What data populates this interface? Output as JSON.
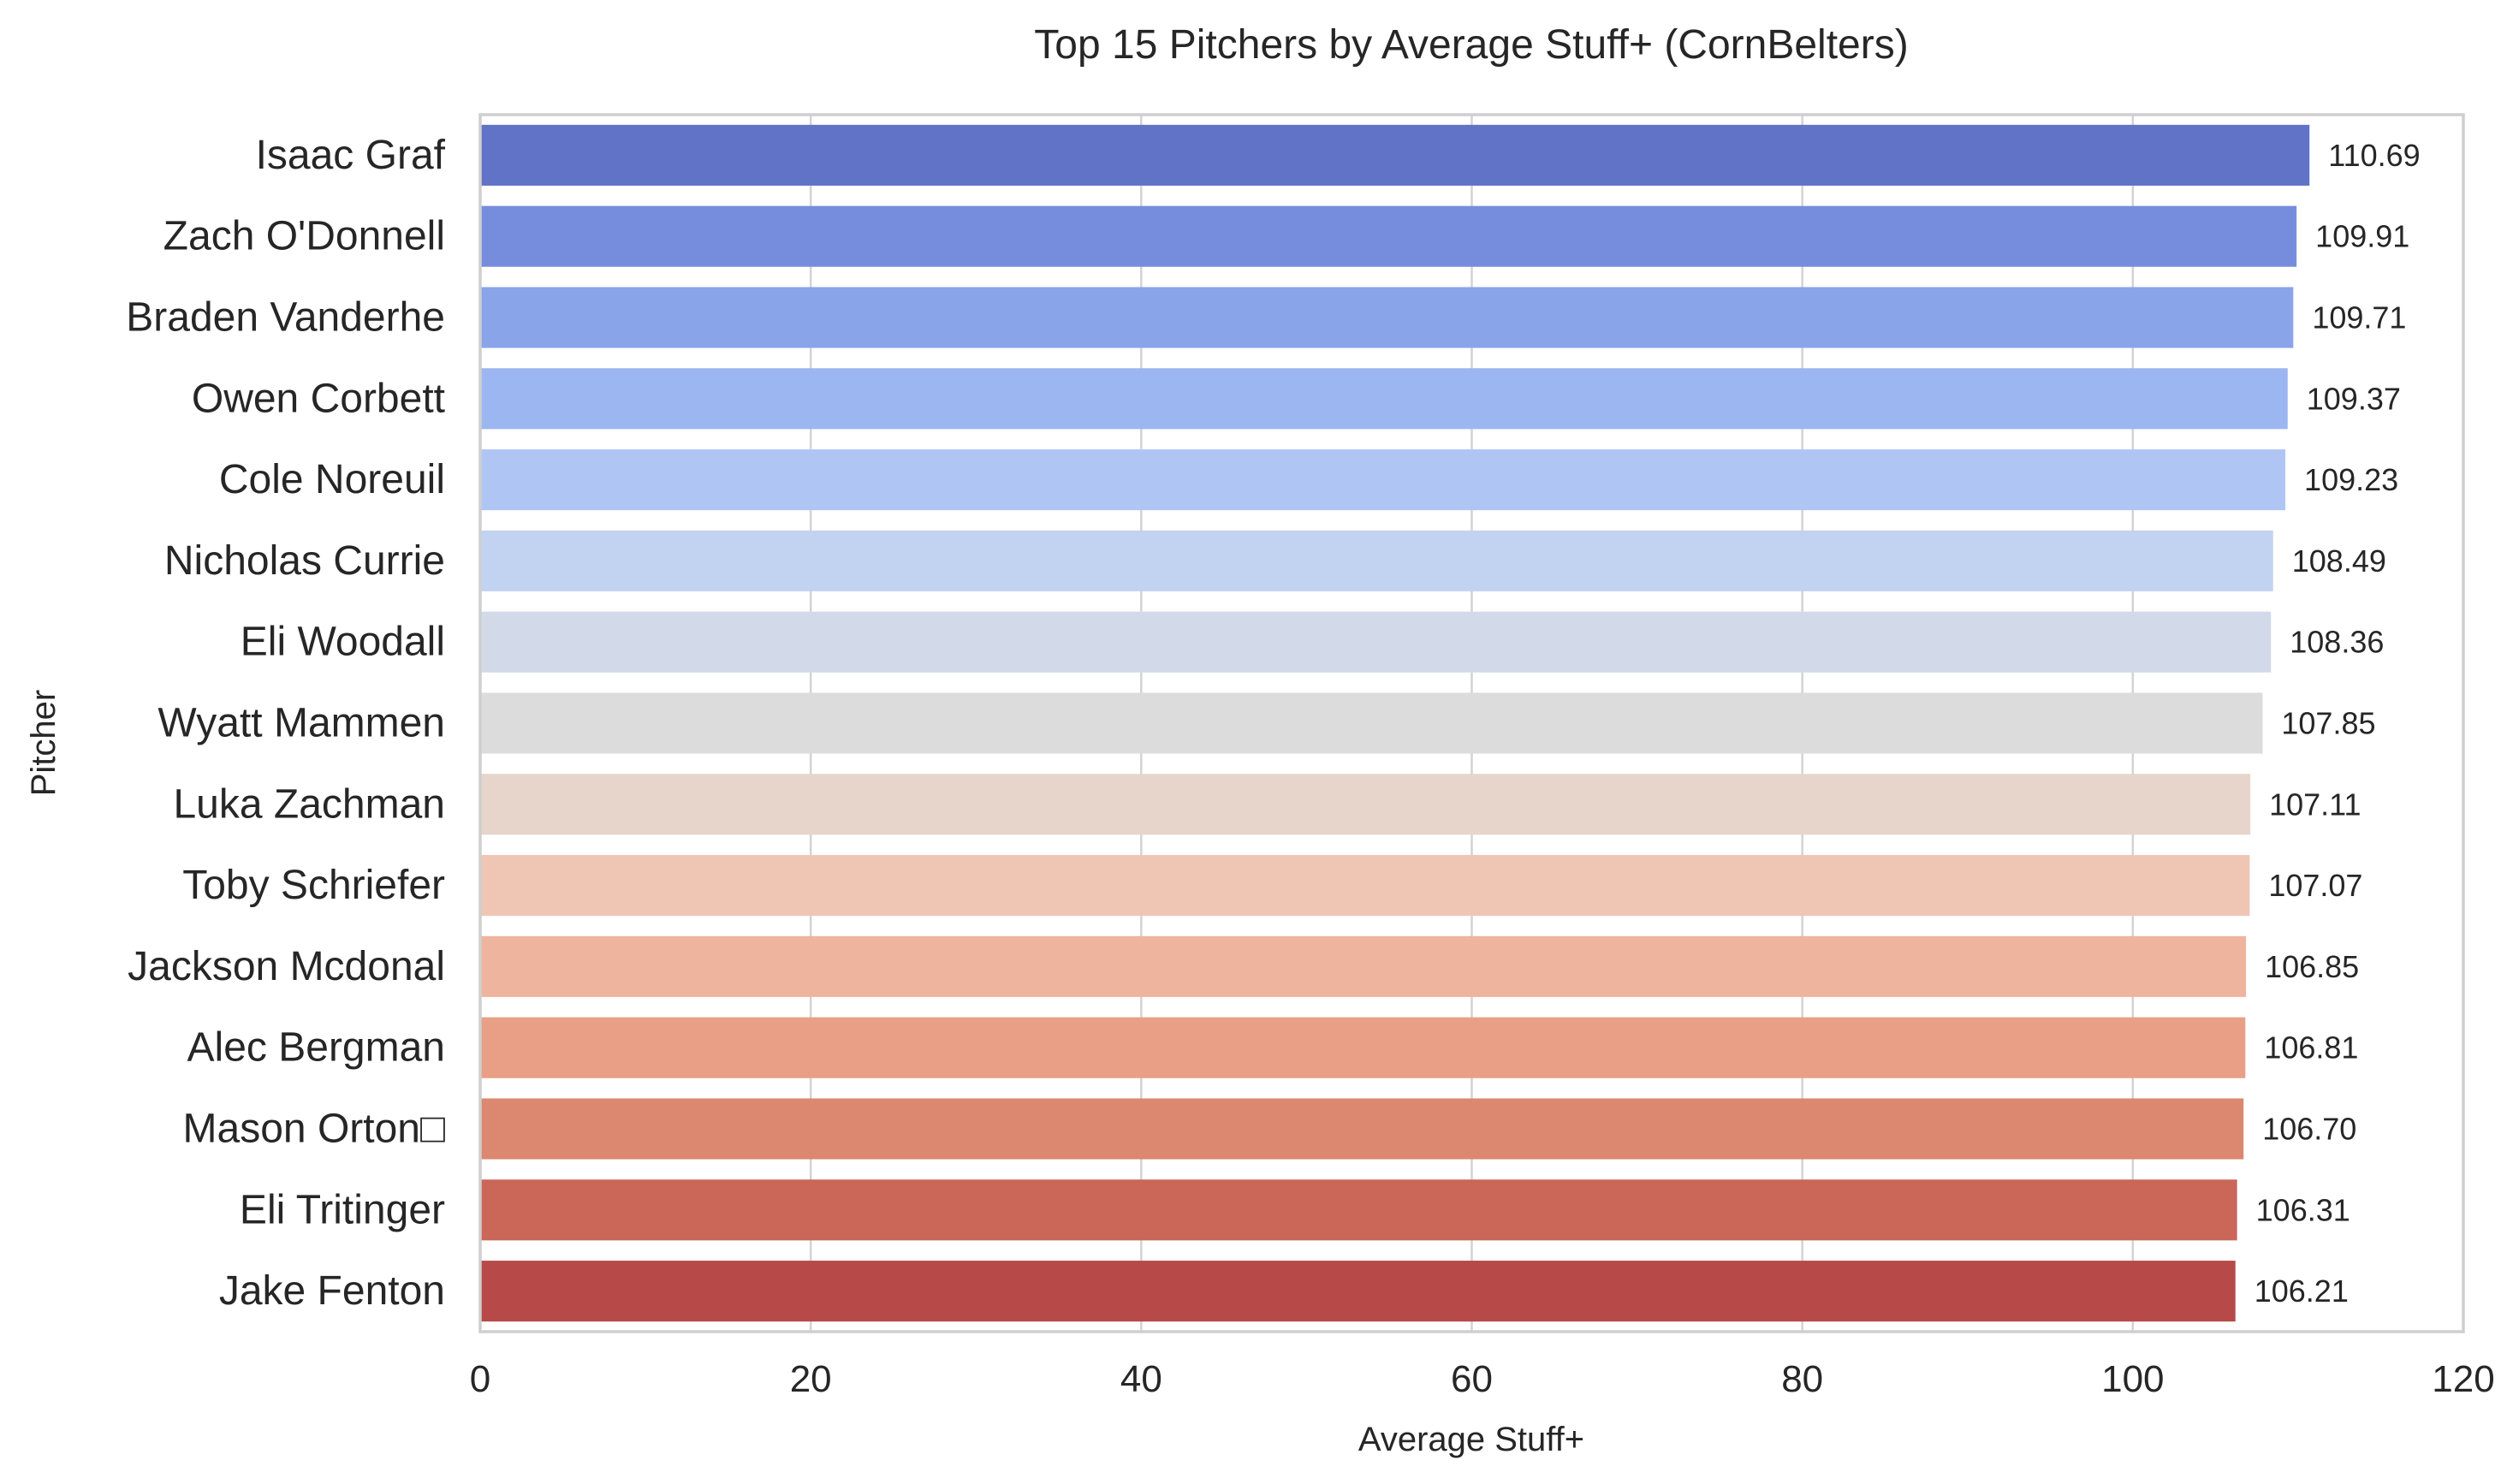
{
  "chart_data": {
    "type": "bar",
    "orientation": "horizontal",
    "title": "Top 15 Pitchers by Average Stuff+ (CornBelters)",
    "xlabel": "Average Stuff+",
    "ylabel": "Pitcher",
    "xlim": [
      0,
      120
    ],
    "xticks": [
      0,
      20,
      40,
      60,
      80,
      100,
      120
    ],
    "grid": true,
    "legend": "none",
    "categories": [
      "Isaac Graf",
      "Zach O'Donnell",
      "Braden Vanderhe",
      "Owen Corbett",
      "Cole Noreuil",
      "Nicholas Currie",
      "Eli Woodall",
      "Wyatt Mammen",
      "Luka Zachman",
      "Toby Schriefer",
      "Jackson Mcdonal",
      "Alec Bergman",
      "Mason Orton□",
      "Eli Tritinger",
      "Jake Fenton"
    ],
    "values": [
      110.69,
      109.91,
      109.71,
      109.37,
      109.23,
      108.49,
      108.36,
      107.85,
      107.11,
      107.07,
      106.85,
      106.81,
      106.7,
      106.31,
      106.21
    ],
    "value_labels": [
      "110.69",
      "109.91",
      "109.71",
      "109.37",
      "109.23",
      "108.49",
      "108.36",
      "107.85",
      "107.11",
      "107.07",
      "106.85",
      "106.81",
      "106.70",
      "106.31",
      "106.21"
    ],
    "colors": [
      "#6173c7",
      "#768dde",
      "#8aa4ea",
      "#9cb6f2",
      "#afc6f5",
      "#c2d3f2",
      "#d2daea",
      "#dcdcdc",
      "#e7d5cb",
      "#efc6b4",
      "#eeb49d",
      "#e89f86",
      "#dc876f",
      "#ca6759",
      "#b74a48"
    ]
  }
}
